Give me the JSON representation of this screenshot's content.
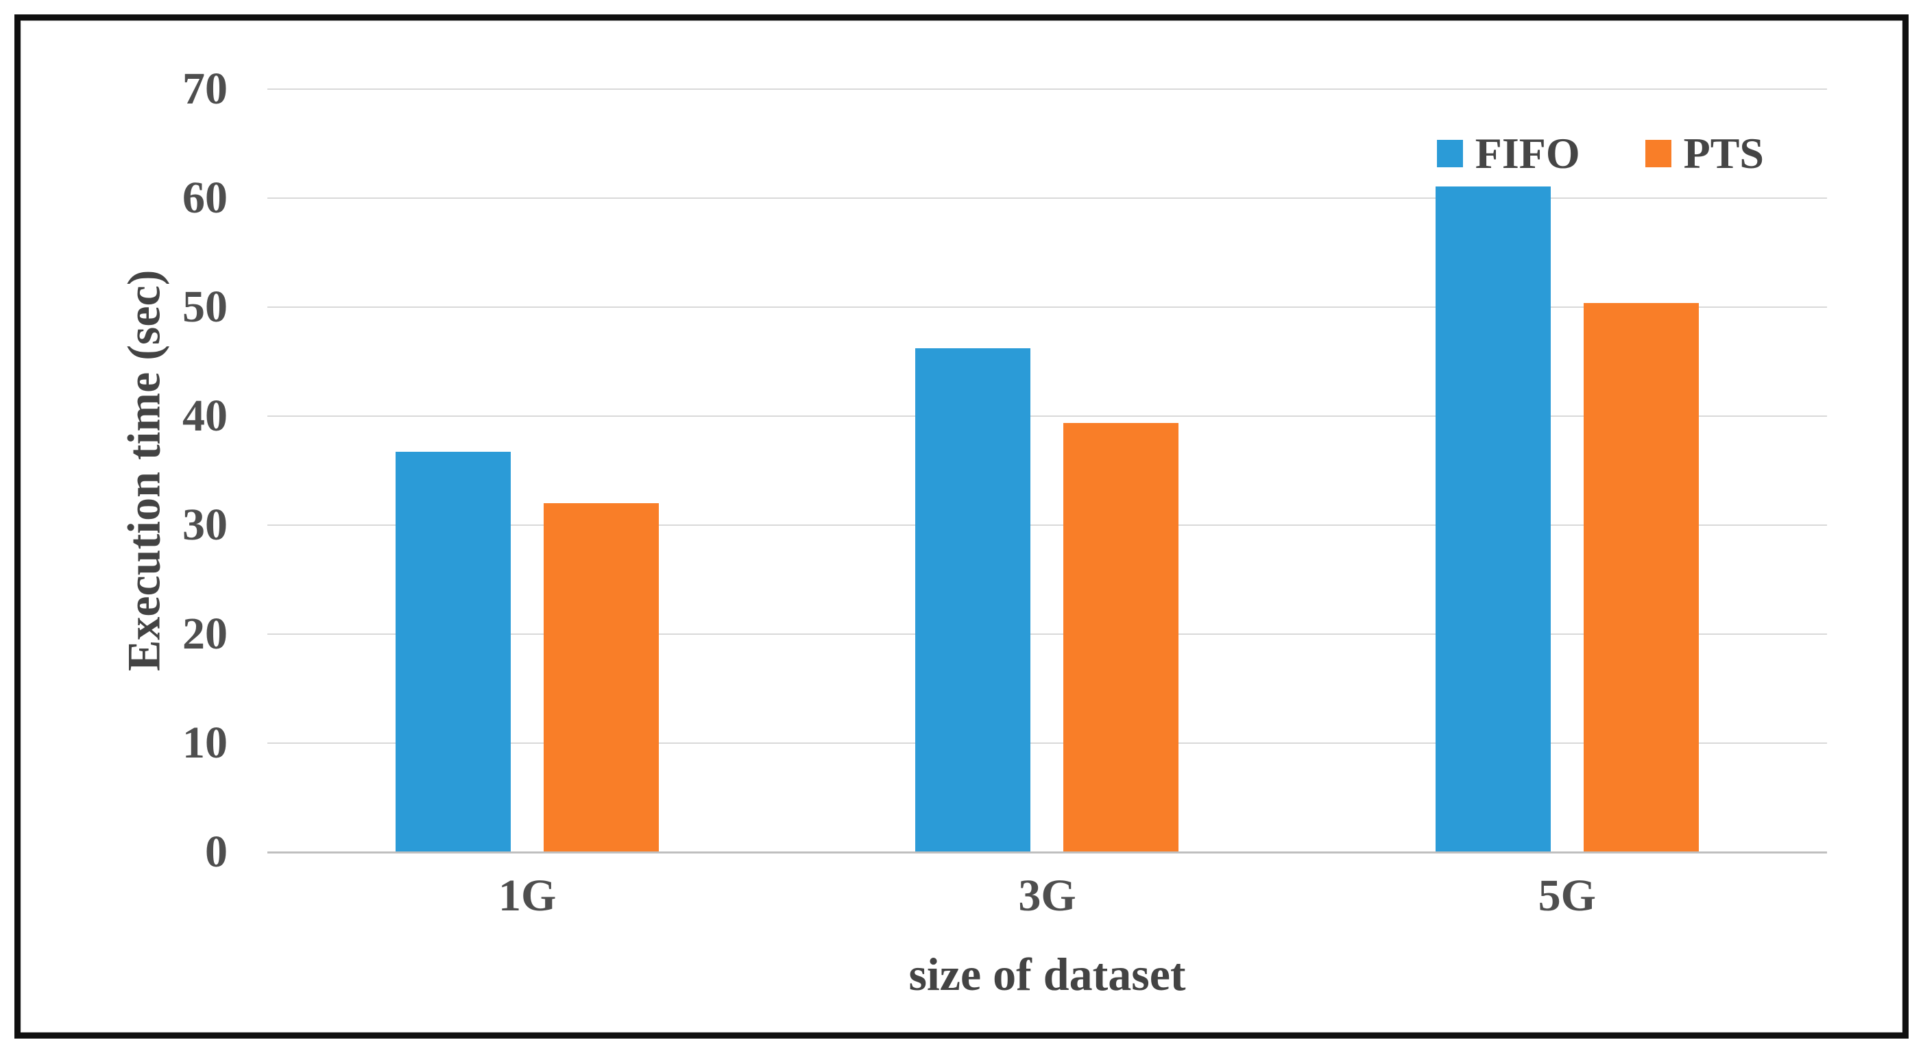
{
  "figure": {
    "background_color": "#ffffff",
    "frame_color": "#0f0f0f",
    "gridline_color": "#d9d9d9",
    "axisline_color": "#bfbfbf",
    "text_color": "#4e4e4e"
  },
  "chart_data": {
    "type": "bar",
    "title": "",
    "categories": [
      "1G",
      "3G",
      "5G"
    ],
    "series": [
      {
        "name": "FIFO",
        "color": "#2B9BD7",
        "values": [
          36.7,
          46.2,
          61.1
        ]
      },
      {
        "name": "PTS",
        "color": "#F97E28",
        "values": [
          32.0,
          39.4,
          50.4
        ]
      }
    ],
    "xlabel": "size of dataset",
    "ylabel": "Execution time (sec)",
    "ylim": [
      0,
      70
    ],
    "y_ticks": [
      70,
      60,
      50,
      40,
      30,
      20,
      10,
      0
    ],
    "grid": "horizontal-on",
    "legend_position": "top-right"
  }
}
